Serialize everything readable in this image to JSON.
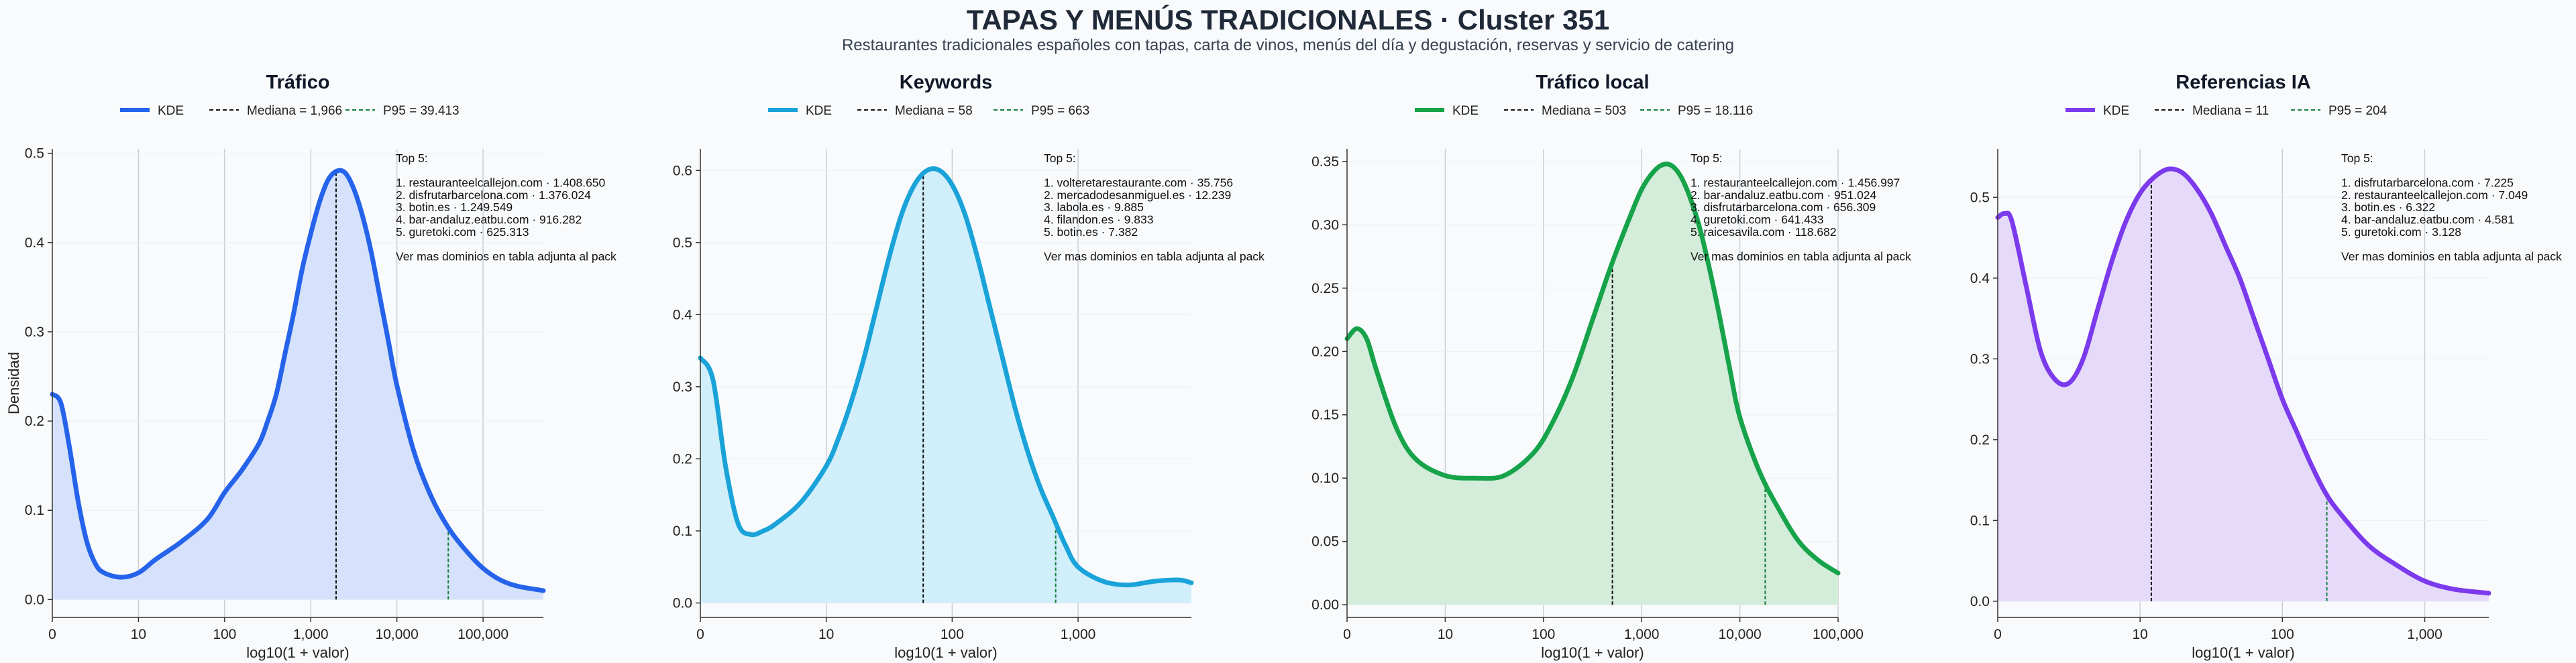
{
  "title": "TAPAS Y MENÚS TRADICIONALES · Cluster 351",
  "subtitle": "Restaurantes tradicionales españoles con tapas, carta de vinos, menús del día y degustación, reservas y servicio de catering",
  "chart_data": [
    {
      "type": "area",
      "title": "Tráfico",
      "xlabel": "log10(1 + valor)",
      "ylabel": "Densidad",
      "color": "#2563eb",
      "fill": "#d6e2fb",
      "xlim": [
        0,
        5.7
      ],
      "ylim": [
        -0.02,
        0.505
      ],
      "yticks": [
        0,
        0.1,
        0.2,
        0.3,
        0.4,
        0.5
      ],
      "ytick_labels": [
        "0.0",
        "0.1",
        "0.2",
        "0.3",
        "0.4",
        "0.5"
      ],
      "xticks": [
        0,
        1,
        2,
        3,
        4,
        5
      ],
      "xtick_labels": [
        "0",
        "10",
        "100",
        "1,000",
        "10,000",
        "100,000"
      ],
      "legend": {
        "kde": "KDE",
        "median": "Mediana = 1,966",
        "p95": "P95 = 39.413"
      },
      "median_x": 3.294,
      "p95_x": 4.596,
      "annotation": [
        "Top 5:",
        "",
        "1. restauranteelcallejon.com · 1.408.650",
        "2. disfrutarbarcelona.com · 1.376.024",
        "3. botin.es · 1.249.549",
        "4. bar-andaluz.eatbu.com · 916.282",
        "5. guretoki.com · 625.313",
        "",
        "Ver mas dominios en tabla adjunta al pack"
      ],
      "x": [
        0,
        0.1,
        0.2,
        0.3,
        0.4,
        0.5,
        0.6,
        0.8,
        1.0,
        1.2,
        1.5,
        1.8,
        2.0,
        2.2,
        2.4,
        2.5,
        2.6,
        2.7,
        2.8,
        2.9,
        3.0,
        3.1,
        3.2,
        3.3,
        3.4,
        3.5,
        3.6,
        3.7,
        3.8,
        3.9,
        4.0,
        4.2,
        4.4,
        4.6,
        4.8,
        5.0,
        5.2,
        5.4,
        5.7
      ],
      "y": [
        0.23,
        0.22,
        0.17,
        0.11,
        0.065,
        0.04,
        0.03,
        0.025,
        0.03,
        0.045,
        0.065,
        0.09,
        0.12,
        0.145,
        0.175,
        0.2,
        0.23,
        0.275,
        0.32,
        0.37,
        0.41,
        0.445,
        0.47,
        0.48,
        0.478,
        0.46,
        0.43,
        0.39,
        0.34,
        0.29,
        0.24,
        0.165,
        0.115,
        0.08,
        0.055,
        0.035,
        0.022,
        0.015,
        0.01
      ]
    },
    {
      "type": "area",
      "title": "Keywords",
      "xlabel": "log10(1 + valor)",
      "ylabel": "",
      "color": "#1aa3d9",
      "fill": "#d1eefb",
      "xlim": [
        0,
        3.9
      ],
      "ylim": [
        -0.02,
        0.63
      ],
      "yticks": [
        0,
        0.1,
        0.2,
        0.3,
        0.4,
        0.5,
        0.6
      ],
      "ytick_labels": [
        "0.0",
        "0.1",
        "0.2",
        "0.3",
        "0.4",
        "0.5",
        "0.6"
      ],
      "xticks": [
        0,
        1,
        2,
        3
      ],
      "xtick_labels": [
        "0",
        "10",
        "100",
        "1,000"
      ],
      "legend": {
        "kde": "KDE",
        "median": "Mediana = 58",
        "p95": "P95 = 663"
      },
      "median_x": 1.77,
      "p95_x": 2.822,
      "annotation": [
        "Top 5:",
        "",
        "1. volteretarestaurante.com · 35.756",
        "2. mercadodesanmiguel.es · 12.239",
        "3. labola.es · 9.885",
        "4. filandon.es · 9.833",
        "5. botin.es · 7.382",
        "",
        "Ver mas dominios en tabla adjunta al pack"
      ],
      "x": [
        0,
        0.1,
        0.2,
        0.3,
        0.4,
        0.5,
        0.6,
        0.8,
        1.0,
        1.1,
        1.2,
        1.3,
        1.4,
        1.5,
        1.6,
        1.7,
        1.8,
        1.9,
        2.0,
        2.1,
        2.2,
        2.3,
        2.4,
        2.5,
        2.6,
        2.7,
        2.8,
        2.9,
        3.0,
        3.2,
        3.4,
        3.6,
        3.8,
        3.9
      ],
      "y": [
        0.34,
        0.31,
        0.19,
        0.11,
        0.095,
        0.1,
        0.11,
        0.14,
        0.19,
        0.23,
        0.28,
        0.34,
        0.41,
        0.48,
        0.54,
        0.58,
        0.6,
        0.6,
        0.58,
        0.54,
        0.48,
        0.41,
        0.34,
        0.27,
        0.21,
        0.16,
        0.12,
        0.08,
        0.05,
        0.03,
        0.025,
        0.03,
        0.032,
        0.028
      ]
    },
    {
      "type": "area",
      "title": "Tráfico local",
      "xlabel": "log10(1 + valor)",
      "ylabel": "",
      "color": "#16a34a",
      "fill": "#d4ecda",
      "xlim": [
        0,
        5.0
      ],
      "ylim": [
        -0.01,
        0.36
      ],
      "yticks": [
        0,
        0.05,
        0.1,
        0.15,
        0.2,
        0.25,
        0.3,
        0.35
      ],
      "ytick_labels": [
        "0.00",
        "0.05",
        "0.10",
        "0.15",
        "0.20",
        "0.25",
        "0.30",
        "0.35"
      ],
      "xticks": [
        0,
        1,
        2,
        3,
        4,
        5
      ],
      "xtick_labels": [
        "0",
        "10",
        "100",
        "1,000",
        "10,000",
        "100,000"
      ],
      "legend": {
        "kde": "KDE",
        "median": "Mediana = 503",
        "p95": "P95 = 18.116"
      },
      "median_x": 2.702,
      "p95_x": 4.258,
      "annotation": [
        "Top 5:",
        "",
        "1. restauranteelcallejon.com · 1.456.997",
        "2. bar-andaluz.eatbu.com · 951.024",
        "3. disfrutarbarcelona.com · 656.309",
        "4. guretoki.com · 641.433",
        "5. raicesavila.com · 118.682",
        "",
        "Ver mas dominios en tabla adjunta al pack"
      ],
      "x": [
        0,
        0.1,
        0.2,
        0.3,
        0.5,
        0.7,
        1.0,
        1.3,
        1.6,
        1.9,
        2.1,
        2.3,
        2.5,
        2.7,
        2.9,
        3.0,
        3.1,
        3.2,
        3.3,
        3.4,
        3.5,
        3.6,
        3.7,
        3.8,
        3.9,
        4.0,
        4.2,
        4.4,
        4.6,
        4.8,
        5.0
      ],
      "y": [
        0.21,
        0.218,
        0.21,
        0.185,
        0.14,
        0.115,
        0.102,
        0.1,
        0.102,
        0.12,
        0.145,
        0.18,
        0.225,
        0.27,
        0.31,
        0.328,
        0.34,
        0.347,
        0.347,
        0.338,
        0.32,
        0.295,
        0.262,
        0.225,
        0.185,
        0.148,
        0.105,
        0.075,
        0.05,
        0.035,
        0.025
      ]
    },
    {
      "type": "area",
      "title": "Referencias IA",
      "xlabel": "log10(1 + valor)",
      "ylabel": "",
      "color": "#7c3aed",
      "fill": "#e5daf9",
      "xlim": [
        0,
        3.45
      ],
      "ylim": [
        -0.02,
        0.56
      ],
      "yticks": [
        0,
        0.1,
        0.2,
        0.3,
        0.4,
        0.5
      ],
      "ytick_labels": [
        "0.0",
        "0.1",
        "0.2",
        "0.3",
        "0.4",
        "0.5"
      ],
      "xticks": [
        0,
        1,
        2,
        3
      ],
      "xtick_labels": [
        "0",
        "10",
        "100",
        "1,000"
      ],
      "legend": {
        "kde": "KDE",
        "median": "Mediana = 11",
        "p95": "P95 = 204"
      },
      "median_x": 1.079,
      "p95_x": 2.312,
      "annotation": [
        "Top 5:",
        "",
        "1. disfrutarbarcelona.com · 7.225",
        "2. restauranteelcallejon.com · 7.049",
        "3. botin.es · 6.322",
        "4. bar-andaluz.eatbu.com · 4.581",
        "5. guretoki.com · 3.128",
        "",
        "Ver mas dominios en tabla adjunta al pack"
      ],
      "x": [
        0,
        0.05,
        0.1,
        0.2,
        0.3,
        0.4,
        0.5,
        0.6,
        0.7,
        0.8,
        0.9,
        1.0,
        1.1,
        1.2,
        1.3,
        1.4,
        1.5,
        1.6,
        1.7,
        1.8,
        1.9,
        2.0,
        2.1,
        2.2,
        2.3,
        2.4,
        2.6,
        2.8,
        3.0,
        3.2,
        3.45
      ],
      "y": [
        0.475,
        0.48,
        0.47,
        0.39,
        0.31,
        0.275,
        0.27,
        0.3,
        0.36,
        0.42,
        0.47,
        0.505,
        0.525,
        0.535,
        0.53,
        0.51,
        0.48,
        0.44,
        0.4,
        0.35,
        0.3,
        0.25,
        0.21,
        0.17,
        0.135,
        0.11,
        0.07,
        0.045,
        0.025,
        0.015,
        0.01
      ]
    }
  ]
}
